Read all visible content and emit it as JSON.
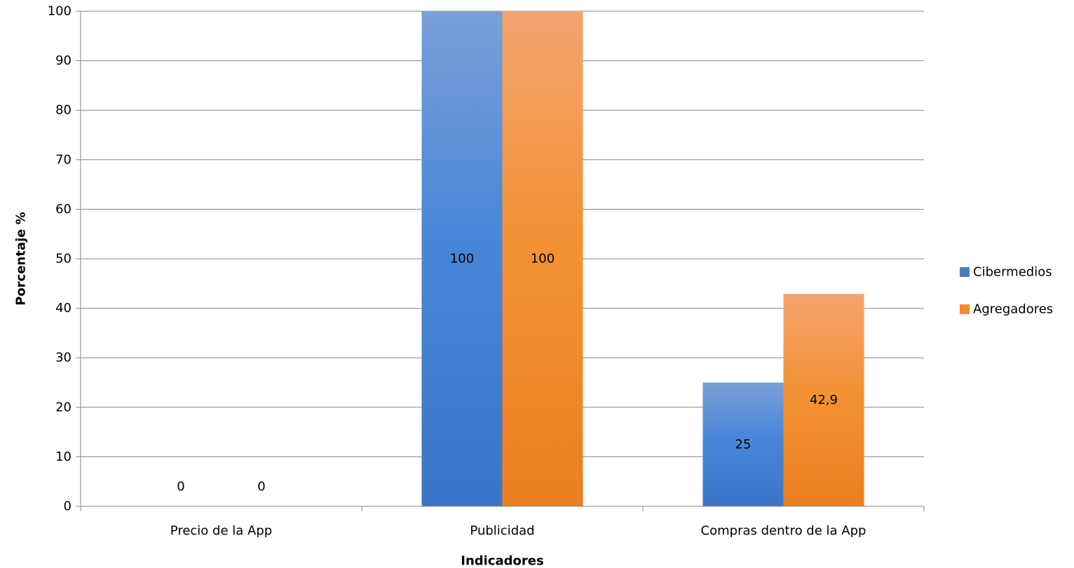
{
  "chart_data": {
    "type": "bar",
    "categories": [
      "Precio de la App",
      "Publicidad",
      "Compras dentro de la App"
    ],
    "series": [
      {
        "name": "Cibermedios",
        "values": [
          0,
          100,
          25
        ],
        "labels": [
          "0",
          "100",
          "25"
        ],
        "color": "#4a7ebb"
      },
      {
        "name": "Agregadores",
        "values": [
          0,
          100,
          42.9
        ],
        "labels": [
          "0",
          "100",
          "42,9"
        ],
        "color": "#f28e2b"
      }
    ],
    "xlabel": "Indicadores",
    "ylabel": "Porcentaje %",
    "ylim": [
      0,
      100
    ],
    "yticks": [
      0,
      10,
      20,
      30,
      40,
      50,
      60,
      70,
      80,
      90,
      100
    ],
    "grid": true,
    "legend_position": "right"
  }
}
